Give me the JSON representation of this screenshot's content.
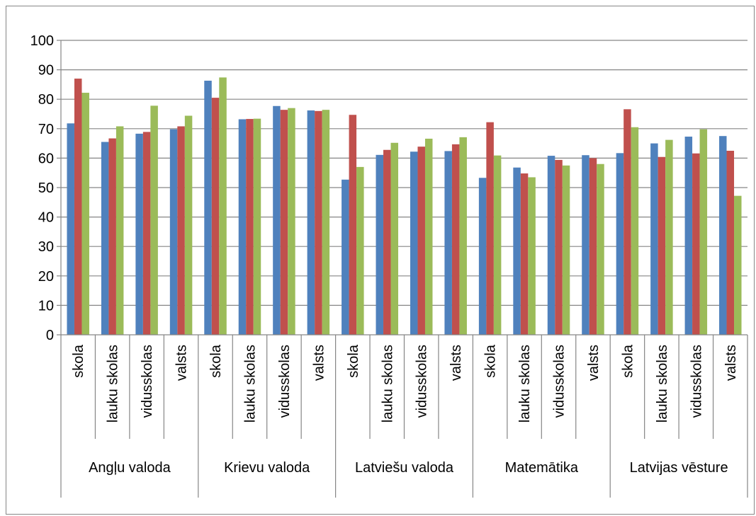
{
  "chart_data": {
    "type": "bar",
    "title": "",
    "xlabel": "",
    "ylabel": "",
    "ylim": [
      0,
      100
    ],
    "yticks": [
      0,
      10,
      20,
      30,
      40,
      50,
      60,
      70,
      80,
      90,
      100
    ],
    "grid": true,
    "legend": "none",
    "groups": [
      "Angļu valoda",
      "Krievu valoda",
      "Latviešu valoda",
      "Matemātika",
      "Latvijas vēsture"
    ],
    "subcategories": [
      "skola",
      "lauku skolas",
      "vidusskolas",
      "valsts"
    ],
    "categories": [
      "skola",
      "lauku skolas",
      "vidusskolas",
      "valsts",
      "skola",
      "lauku skolas",
      "vidusskolas",
      "valsts",
      "skola",
      "lauku skolas",
      "vidusskolas",
      "valsts",
      "skola",
      "lauku skolas",
      "vidusskolas",
      "valsts",
      "skola",
      "lauku skolas",
      "vidusskolas",
      "valsts"
    ],
    "series": [
      {
        "color": "#4F81BD",
        "values": [
          71.8,
          65.5,
          68.3,
          69.8,
          86.3,
          73.2,
          77.7,
          76.2,
          52.7,
          61.1,
          62.2,
          62.4,
          53.3,
          56.8,
          60.8,
          61.0,
          61.7,
          65.0,
          67.3,
          67.5
        ]
      },
      {
        "color": "#C0504D",
        "values": [
          87.0,
          66.7,
          68.9,
          70.8,
          80.5,
          73.3,
          76.4,
          76.0,
          74.7,
          62.8,
          63.9,
          64.7,
          72.2,
          54.8,
          59.4,
          60.0,
          76.6,
          60.4,
          61.6,
          62.5
        ]
      },
      {
        "color": "#9BBB59",
        "values": [
          82.2,
          70.8,
          77.8,
          74.4,
          87.4,
          73.4,
          77.0,
          76.4,
          57.0,
          65.2,
          66.6,
          67.1,
          60.9,
          53.5,
          57.5,
          58.0,
          70.5,
          66.2,
          69.8,
          47.2
        ]
      }
    ]
  }
}
